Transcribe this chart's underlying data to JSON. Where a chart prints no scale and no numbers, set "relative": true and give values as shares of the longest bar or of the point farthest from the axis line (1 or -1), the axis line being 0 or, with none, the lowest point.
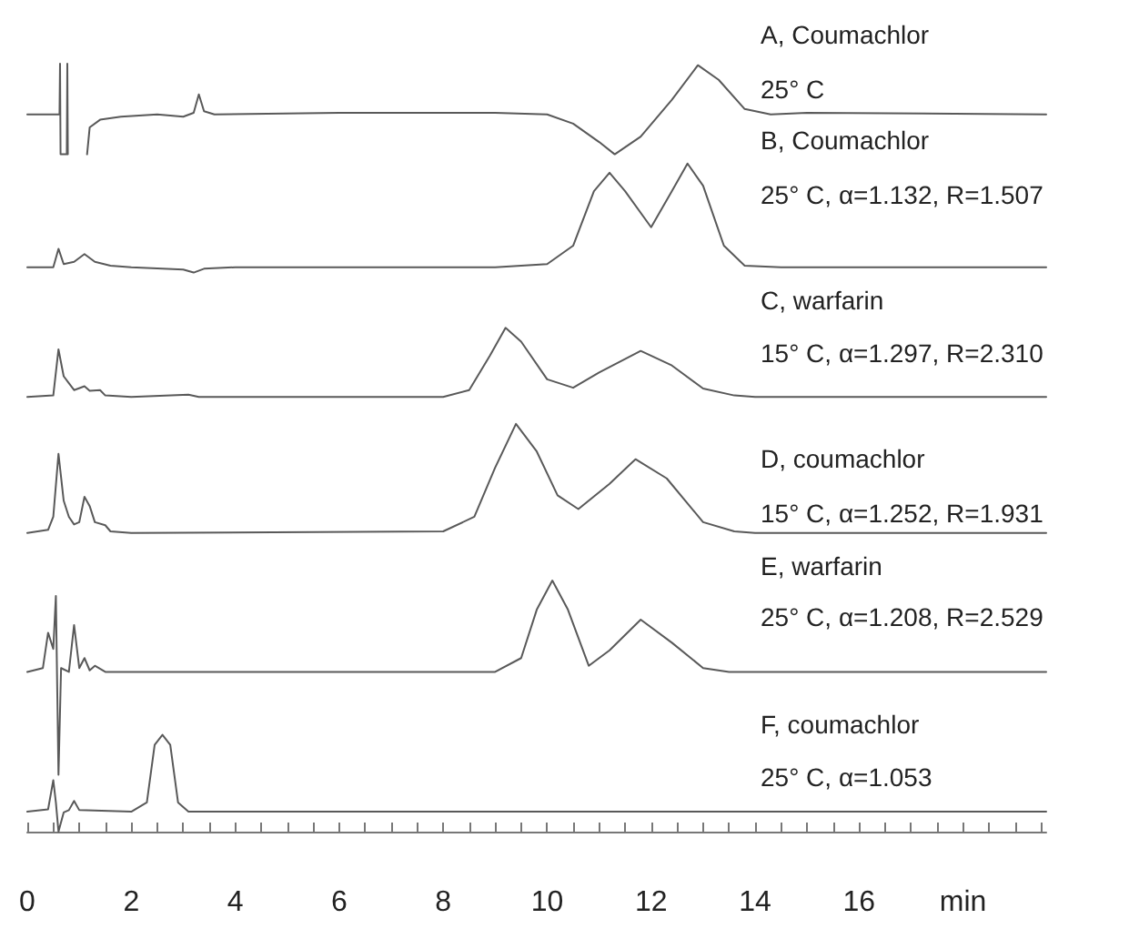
{
  "chart_data": {
    "type": "line",
    "relative": true,
    "xlim": [
      0,
      19.6
    ],
    "annotations": [
      "A, Coumachlor",
      "25° C",
      "B, Coumachlor",
      "25° C, α=1.132, R=1.507",
      "C, warfarin",
      "15° C, α=1.297, R=2.310",
      "D, coumachlor",
      "15° C, α=1.252, R=1.931",
      "E, warfarin",
      "25° C, α=1.208, R=2.529",
      "F, coumachlor",
      "25° C, α=1.053"
    ],
    "xticks": [
      0,
      {
        "value": 0.5,
        "label": null
      },
      {
        "value": 1,
        "label": null
      },
      {
        "value": 1.5,
        "label": null
      },
      2,
      {
        "value": 2.5,
        "label": null
      },
      {
        "value": 3,
        "label": null
      },
      {
        "value": 3.5,
        "label": null
      },
      4,
      {
        "value": 4.5,
        "label": null
      },
      {
        "value": 5,
        "label": null
      },
      {
        "value": 5.5,
        "label": null
      },
      6,
      {
        "value": 6.5,
        "label": null
      },
      {
        "value": 7,
        "label": null
      },
      {
        "value": 7.5,
        "label": null
      },
      8,
      {
        "value": 8.5,
        "label": null
      },
      {
        "value": 9,
        "label": null
      },
      {
        "value": 9.5,
        "label": null
      },
      10,
      {
        "value": 10.5,
        "label": null
      },
      {
        "value": 11,
        "label": null
      },
      {
        "value": 11.5,
        "label": null
      },
      12,
      {
        "value": 12.5,
        "label": null
      },
      {
        "value": 13,
        "label": null
      },
      {
        "value": 13.5,
        "label": null
      },
      14,
      {
        "value": 14.5,
        "label": null
      },
      {
        "value": 15,
        "label": null
      },
      {
        "value": 15.5,
        "label": null
      },
      16,
      {
        "value": 16.5,
        "label": null
      },
      {
        "value": 17,
        "label": null
      },
      {
        "value": 17.5,
        "label": null
      },
      {
        "value": 18,
        "label": "min"
      },
      {
        "value": 18.5,
        "label": null
      },
      {
        "value": 19,
        "label": null
      },
      {
        "value": 19.5,
        "label": null
      }
    ],
    "series": [
      {
        "color": "#595959",
        "x": [
          0,
          0.62,
          0.63,
          0.64,
          0.76,
          0.77,
          0.78,
          0.9,
          1.15,
          1.2,
          1.4,
          1.8,
          2.5,
          3.0,
          3.2,
          3.3,
          3.4,
          3.6,
          6,
          9,
          10,
          10.5,
          11,
          11.3,
          11.8,
          12.4,
          12.9,
          13.3,
          13.8,
          14.3,
          15,
          19.6
        ],
        "values": [
          0.934,
          0.934,
          1.0,
          0.882,
          0.882,
          1.0,
          0.882,
          null,
          0.882,
          0.917,
          0.927,
          0.931,
          0.934,
          0.931,
          0.936,
          0.96,
          0.938,
          0.934,
          0.936,
          0.936,
          0.934,
          0.922,
          0.898,
          0.882,
          0.905,
          0.953,
          0.998,
          0.979,
          0.941,
          0.934,
          0.936,
          0.934
        ]
      },
      {
        "color": "#595959",
        "x": [
          0,
          0.5,
          0.6,
          0.7,
          0.9,
          1.1,
          1.3,
          1.6,
          2,
          3.0,
          3.2,
          3.4,
          4,
          9,
          10,
          10.5,
          10.9,
          11.2,
          11.5,
          12.0,
          12.4,
          12.7,
          13.0,
          13.4,
          13.8,
          14.5,
          19.6
        ],
        "values": [
          0.735,
          0.735,
          0.759,
          0.739,
          0.742,
          0.752,
          0.742,
          0.737,
          0.735,
          0.732,
          0.728,
          0.733,
          0.735,
          0.735,
          0.739,
          0.763,
          0.834,
          0.858,
          0.834,
          0.787,
          0.834,
          0.87,
          0.841,
          0.763,
          0.737,
          0.735,
          0.735
        ]
      },
      {
        "color": "#595959",
        "x": [
          0,
          0.5,
          0.6,
          0.7,
          0.8,
          0.9,
          1.1,
          1.2,
          1.4,
          1.5,
          2,
          3.1,
          3.3,
          8,
          8.5,
          8.9,
          9.2,
          9.5,
          10,
          10.5,
          11,
          11.8,
          12.4,
          13,
          13.6,
          14,
          19.6
        ],
        "values": [
          0.566,
          0.568,
          0.628,
          0.593,
          0.584,
          0.575,
          0.58,
          0.574,
          0.575,
          0.568,
          0.566,
          0.569,
          0.566,
          0.566,
          0.575,
          0.62,
          0.656,
          0.638,
          0.589,
          0.578,
          0.598,
          0.626,
          0.607,
          0.577,
          0.568,
          0.566,
          0.566
        ]
      },
      {
        "color": "#595959",
        "x": [
          0,
          0.4,
          0.5,
          0.6,
          0.7,
          0.8,
          0.9,
          1.0,
          1.1,
          1.2,
          1.3,
          1.5,
          1.6,
          2,
          8,
          8.6,
          9.0,
          9.4,
          9.8,
          10.2,
          10.6,
          11.2,
          11.7,
          12.3,
          13,
          13.6,
          14,
          19.6
        ],
        "values": [
          0.389,
          0.393,
          0.41,
          0.492,
          0.431,
          0.41,
          0.4,
          0.403,
          0.436,
          0.424,
          0.403,
          0.399,
          0.391,
          0.389,
          0.391,
          0.41,
          0.474,
          0.531,
          0.495,
          0.438,
          0.42,
          0.453,
          0.485,
          0.46,
          0.403,
          0.391,
          0.389,
          0.389
        ]
      },
      {
        "color": "#595959",
        "x": [
          0,
          0.3,
          0.4,
          0.5,
          0.55,
          0.6,
          0.65,
          0.8,
          0.9,
          1.0,
          1.1,
          1.2,
          1.3,
          1.5,
          9,
          9.5,
          9.8,
          10.1,
          10.4,
          10.8,
          11.2,
          11.8,
          12.4,
          13,
          13.5,
          19.6
        ],
        "values": [
          0.208,
          0.213,
          0.259,
          0.238,
          0.307,
          0.074,
          0.213,
          0.208,
          0.269,
          0.213,
          0.226,
          0.21,
          0.216,
          0.208,
          0.208,
          0.226,
          0.289,
          0.327,
          0.289,
          0.216,
          0.236,
          0.276,
          0.246,
          0.213,
          0.208,
          0.208
        ]
      },
      {
        "color": "#595959",
        "x": [
          0,
          0.4,
          0.5,
          0.55,
          0.6,
          0.7,
          0.8,
          0.9,
          1.0,
          2,
          2.3,
          2.45,
          2.6,
          2.75,
          2.9,
          3.1,
          19.6
        ],
        "values": [
          0.026,
          0.029,
          0.067,
          0.038,
          0.0,
          0.025,
          0.028,
          0.04,
          0.028,
          0.026,
          0.038,
          0.113,
          0.126,
          0.113,
          0.038,
          0.026,
          0.026
        ]
      }
    ]
  }
}
